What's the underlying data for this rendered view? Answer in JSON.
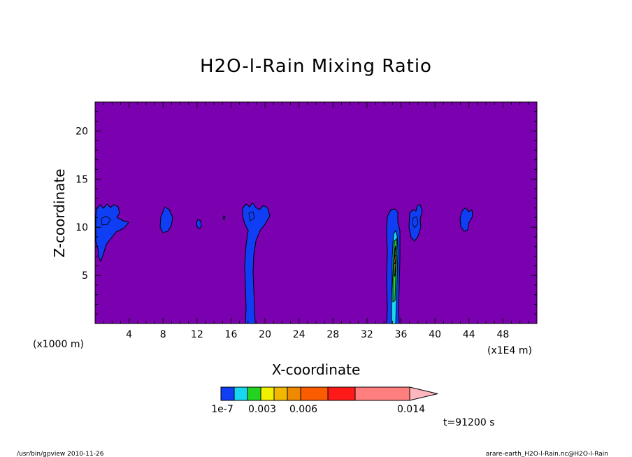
{
  "chart_data": {
    "type": "heatmap",
    "title": "H2O-l-Rain Mixing Ratio",
    "xlabel": "X-coordinate",
    "ylabel": "Z-coordinate",
    "x_unit_left": "(x1000 m)",
    "x_unit_right": "(x1E4 m)",
    "xlim": [
      0,
      52
    ],
    "ylim": [
      0,
      23
    ],
    "xticks": [
      "4",
      "8",
      "12",
      "16",
      "20",
      "24",
      "28",
      "32",
      "36",
      "40",
      "44",
      "48"
    ],
    "yticks": [
      "5",
      "10",
      "15",
      "20"
    ],
    "background_color": "#7b00b0",
    "contour_levels": [
      "1e-7",
      "0.003",
      "0.006",
      "0.014"
    ],
    "colorbar_colors": [
      "#0f3ef5",
      "#16d8f0",
      "#22d322",
      "#f0f000",
      "#f2b800",
      "#ef8a00",
      "#fb5c00",
      "#ff1a1a",
      "#ff7f7f",
      "#ffb7bf"
    ],
    "regions": [
      {
        "level": "1e-7",
        "x_center": 1.5,
        "z_range": [
          7,
          12.3
        ]
      },
      {
        "level": "1e-7",
        "x_center": 8.2,
        "z_range": [
          9.2,
          12.2
        ]
      },
      {
        "level": "1e-7",
        "x_center": 12.0,
        "z_range": [
          9.8,
          10.8
        ]
      },
      {
        "level": "1e-7",
        "x_center": 18.0,
        "z_range": [
          0,
          12.4
        ]
      },
      {
        "level": "1e-7",
        "x_center": 34.3,
        "z_range": [
          0,
          11.7
        ]
      },
      {
        "level": "0.003",
        "x_center": 34.7,
        "z_range": [
          0,
          9.5
        ]
      },
      {
        "level": "0.006",
        "x_center": 34.8,
        "z_range": [
          3,
          9
        ]
      },
      {
        "level": "1e-7",
        "x_center": 37.3,
        "z_range": [
          8.5,
          12.3
        ]
      },
      {
        "level": "1e-7",
        "x_center": 42.8,
        "z_range": [
          9.5,
          12
        ]
      }
    ]
  },
  "time_label": "t=91200 s",
  "footer": {
    "left": "/usr/bin/gpview  2010-11-26",
    "right": "arare-earth_H2O-l-Rain.nc@H2O-l-Rain"
  }
}
